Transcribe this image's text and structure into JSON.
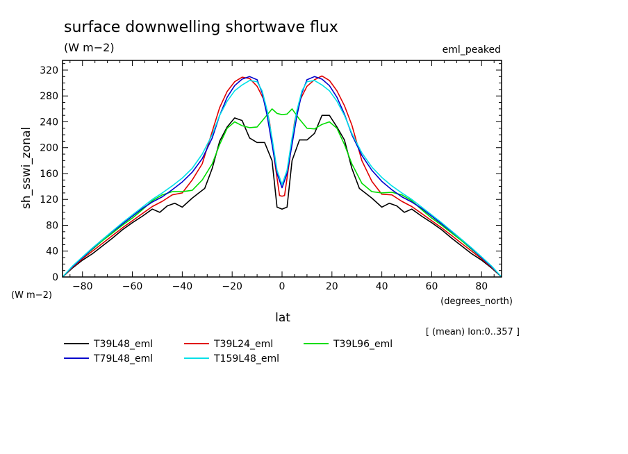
{
  "chart_data": {
    "type": "line",
    "title": "surface downwelling shortwave flux",
    "subtitle": "(W m−2)",
    "dataset_label": "eml_peaked",
    "ylabel": "sh_sswi_zonal",
    "y_units": "(W m−2)",
    "xlabel": "lat",
    "x_units": "(degrees_north)",
    "footnote": "[ (mean) lon:0..357 ]",
    "xlim": [
      -88,
      88
    ],
    "ylim": [
      0,
      335
    ],
    "x_ticks": [
      -80,
      -60,
      -40,
      -20,
      0,
      20,
      40,
      60,
      80
    ],
    "y_ticks": [
      0,
      40,
      80,
      120,
      160,
      200,
      240,
      280,
      320
    ],
    "legend_placement": "bottom",
    "series": [
      {
        "name": "T39L48_eml",
        "color": "#000000",
        "points": [
          [
            -88,
            0
          ],
          [
            -84,
            14
          ],
          [
            -80,
            26
          ],
          [
            -76,
            36
          ],
          [
            -72,
            48
          ],
          [
            -68,
            60
          ],
          [
            -64,
            73
          ],
          [
            -60,
            84
          ],
          [
            -56,
            94
          ],
          [
            -52,
            105
          ],
          [
            -49,
            100
          ],
          [
            -46,
            110
          ],
          [
            -43,
            114
          ],
          [
            -40,
            108
          ],
          [
            -36,
            122
          ],
          [
            -31,
            137
          ],
          [
            -28,
            168
          ],
          [
            -25,
            210
          ],
          [
            -22,
            232
          ],
          [
            -19,
            246
          ],
          [
            -16,
            242
          ],
          [
            -13,
            215
          ],
          [
            -10,
            208
          ],
          [
            -7,
            208
          ],
          [
            -4,
            180
          ],
          [
            -2,
            108
          ],
          [
            0,
            105
          ],
          [
            2,
            108
          ],
          [
            4,
            180
          ],
          [
            7,
            212
          ],
          [
            10,
            212
          ],
          [
            13,
            222
          ],
          [
            16,
            250
          ],
          [
            19,
            250
          ],
          [
            22,
            232
          ],
          [
            25,
            212
          ],
          [
            28,
            168
          ],
          [
            31,
            137
          ],
          [
            36,
            122
          ],
          [
            40,
            108
          ],
          [
            43,
            114
          ],
          [
            46,
            110
          ],
          [
            49,
            100
          ],
          [
            52,
            105
          ],
          [
            56,
            94
          ],
          [
            60,
            84
          ],
          [
            64,
            73
          ],
          [
            68,
            60
          ],
          [
            72,
            48
          ],
          [
            76,
            36
          ],
          [
            80,
            26
          ],
          [
            84,
            14
          ],
          [
            88,
            0
          ]
        ]
      },
      {
        "name": "T39L24_eml",
        "color": "#e00000",
        "points": [
          [
            -88,
            0
          ],
          [
            -84,
            15
          ],
          [
            -80,
            28
          ],
          [
            -76,
            40
          ],
          [
            -72,
            52
          ],
          [
            -68,
            64
          ],
          [
            -64,
            76
          ],
          [
            -60,
            87
          ],
          [
            -56,
            98
          ],
          [
            -52,
            109
          ],
          [
            -48,
            117
          ],
          [
            -44,
            127
          ],
          [
            -40,
            130
          ],
          [
            -36,
            150
          ],
          [
            -32,
            175
          ],
          [
            -28,
            225
          ],
          [
            -25,
            262
          ],
          [
            -22,
            287
          ],
          [
            -19,
            302
          ],
          [
            -16,
            309
          ],
          [
            -13,
            307
          ],
          [
            -10,
            295
          ],
          [
            -7,
            272
          ],
          [
            -5,
            240
          ],
          [
            -3,
            180
          ],
          [
            -1,
            126
          ],
          [
            0,
            125
          ],
          [
            1,
            126
          ],
          [
            3,
            180
          ],
          [
            5,
            240
          ],
          [
            7,
            272
          ],
          [
            10,
            295
          ],
          [
            13,
            305
          ],
          [
            16,
            311
          ],
          [
            19,
            304
          ],
          [
            22,
            288
          ],
          [
            25,
            265
          ],
          [
            28,
            235
          ],
          [
            32,
            180
          ],
          [
            36,
            148
          ],
          [
            40,
            128
          ],
          [
            44,
            127
          ],
          [
            48,
            117
          ],
          [
            52,
            109
          ],
          [
            56,
            98
          ],
          [
            60,
            87
          ],
          [
            64,
            76
          ],
          [
            68,
            64
          ],
          [
            72,
            52
          ],
          [
            76,
            40
          ],
          [
            80,
            28
          ],
          [
            84,
            15
          ],
          [
            88,
            0
          ]
        ]
      },
      {
        "name": "T39L96_eml",
        "color": "#00dd00",
        "points": [
          [
            -88,
            0
          ],
          [
            -84,
            16
          ],
          [
            -80,
            30
          ],
          [
            -76,
            43
          ],
          [
            -72,
            56
          ],
          [
            -68,
            68
          ],
          [
            -64,
            80
          ],
          [
            -60,
            91
          ],
          [
            -56,
            104
          ],
          [
            -52,
            118
          ],
          [
            -48,
            127
          ],
          [
            -44,
            132
          ],
          [
            -40,
            132
          ],
          [
            -36,
            134
          ],
          [
            -32,
            150
          ],
          [
            -28,
            175
          ],
          [
            -25,
            205
          ],
          [
            -22,
            230
          ],
          [
            -19,
            240
          ],
          [
            -16,
            234
          ],
          [
            -13,
            231
          ],
          [
            -10,
            232
          ],
          [
            -7,
            246
          ],
          [
            -4,
            260
          ],
          [
            -2,
            253
          ],
          [
            0,
            251
          ],
          [
            2,
            252
          ],
          [
            4,
            260
          ],
          [
            7,
            244
          ],
          [
            10,
            230
          ],
          [
            13,
            229
          ],
          [
            16,
            236
          ],
          [
            19,
            240
          ],
          [
            22,
            230
          ],
          [
            25,
            205
          ],
          [
            28,
            175
          ],
          [
            32,
            145
          ],
          [
            36,
            132
          ],
          [
            40,
            130
          ],
          [
            44,
            131
          ],
          [
            48,
            127
          ],
          [
            52,
            118
          ],
          [
            56,
            104
          ],
          [
            60,
            91
          ],
          [
            64,
            80
          ],
          [
            68,
            68
          ],
          [
            72,
            56
          ],
          [
            76,
            43
          ],
          [
            80,
            30
          ],
          [
            84,
            16
          ],
          [
            88,
            0
          ]
        ]
      },
      {
        "name": "T79L48_eml",
        "color": "#0000cc",
        "points": [
          [
            -88,
            0
          ],
          [
            -84,
            16
          ],
          [
            -80,
            30
          ],
          [
            -76,
            44
          ],
          [
            -72,
            58
          ],
          [
            -68,
            70
          ],
          [
            -64,
            82
          ],
          [
            -60,
            94
          ],
          [
            -56,
            106
          ],
          [
            -52,
            116
          ],
          [
            -48,
            124
          ],
          [
            -44,
            135
          ],
          [
            -40,
            147
          ],
          [
            -36,
            162
          ],
          [
            -32,
            183
          ],
          [
            -28,
            215
          ],
          [
            -25,
            250
          ],
          [
            -22,
            278
          ],
          [
            -19,
            296
          ],
          [
            -16,
            306
          ],
          [
            -13,
            310
          ],
          [
            -10,
            305
          ],
          [
            -8,
            285
          ],
          [
            -6,
            250
          ],
          [
            -4,
            205
          ],
          [
            -2,
            160
          ],
          [
            0,
            138
          ],
          [
            2,
            160
          ],
          [
            4,
            205
          ],
          [
            6,
            250
          ],
          [
            8,
            285
          ],
          [
            10,
            305
          ],
          [
            13,
            310
          ],
          [
            16,
            306
          ],
          [
            19,
            296
          ],
          [
            22,
            278
          ],
          [
            25,
            252
          ],
          [
            28,
            220
          ],
          [
            32,
            188
          ],
          [
            36,
            165
          ],
          [
            40,
            148
          ],
          [
            44,
            135
          ],
          [
            48,
            124
          ],
          [
            52,
            116
          ],
          [
            56,
            106
          ],
          [
            60,
            94
          ],
          [
            64,
            82
          ],
          [
            68,
            70
          ],
          [
            72,
            58
          ],
          [
            76,
            44
          ],
          [
            80,
            30
          ],
          [
            84,
            16
          ],
          [
            88,
            0
          ]
        ]
      },
      {
        "name": "T159L48_eml",
        "color": "#00e0e8",
        "points": [
          [
            -88,
            0
          ],
          [
            -84,
            17
          ],
          [
            -80,
            31
          ],
          [
            -76,
            45
          ],
          [
            -72,
            58
          ],
          [
            -68,
            71
          ],
          [
            -64,
            84
          ],
          [
            -60,
            96
          ],
          [
            -56,
            108
          ],
          [
            -52,
            120
          ],
          [
            -48,
            130
          ],
          [
            -44,
            141
          ],
          [
            -40,
            153
          ],
          [
            -36,
            168
          ],
          [
            -32,
            190
          ],
          [
            -28,
            220
          ],
          [
            -25,
            250
          ],
          [
            -22,
            272
          ],
          [
            -19,
            288
          ],
          [
            -16,
            297
          ],
          [
            -13,
            304
          ],
          [
            -10,
            302
          ],
          [
            -8,
            288
          ],
          [
            -6,
            258
          ],
          [
            -4,
            215
          ],
          [
            -2,
            165
          ],
          [
            0,
            143
          ],
          [
            2,
            165
          ],
          [
            4,
            215
          ],
          [
            6,
            258
          ],
          [
            8,
            288
          ],
          [
            10,
            302
          ],
          [
            13,
            304
          ],
          [
            16,
            297
          ],
          [
            19,
            288
          ],
          [
            22,
            272
          ],
          [
            25,
            250
          ],
          [
            28,
            222
          ],
          [
            32,
            192
          ],
          [
            36,
            170
          ],
          [
            40,
            154
          ],
          [
            44,
            141
          ],
          [
            48,
            130
          ],
          [
            52,
            120
          ],
          [
            56,
            108
          ],
          [
            60,
            96
          ],
          [
            64,
            84
          ],
          [
            68,
            71
          ],
          [
            72,
            58
          ],
          [
            76,
            45
          ],
          [
            80,
            31
          ],
          [
            84,
            17
          ],
          [
            88,
            0
          ]
        ]
      }
    ]
  }
}
